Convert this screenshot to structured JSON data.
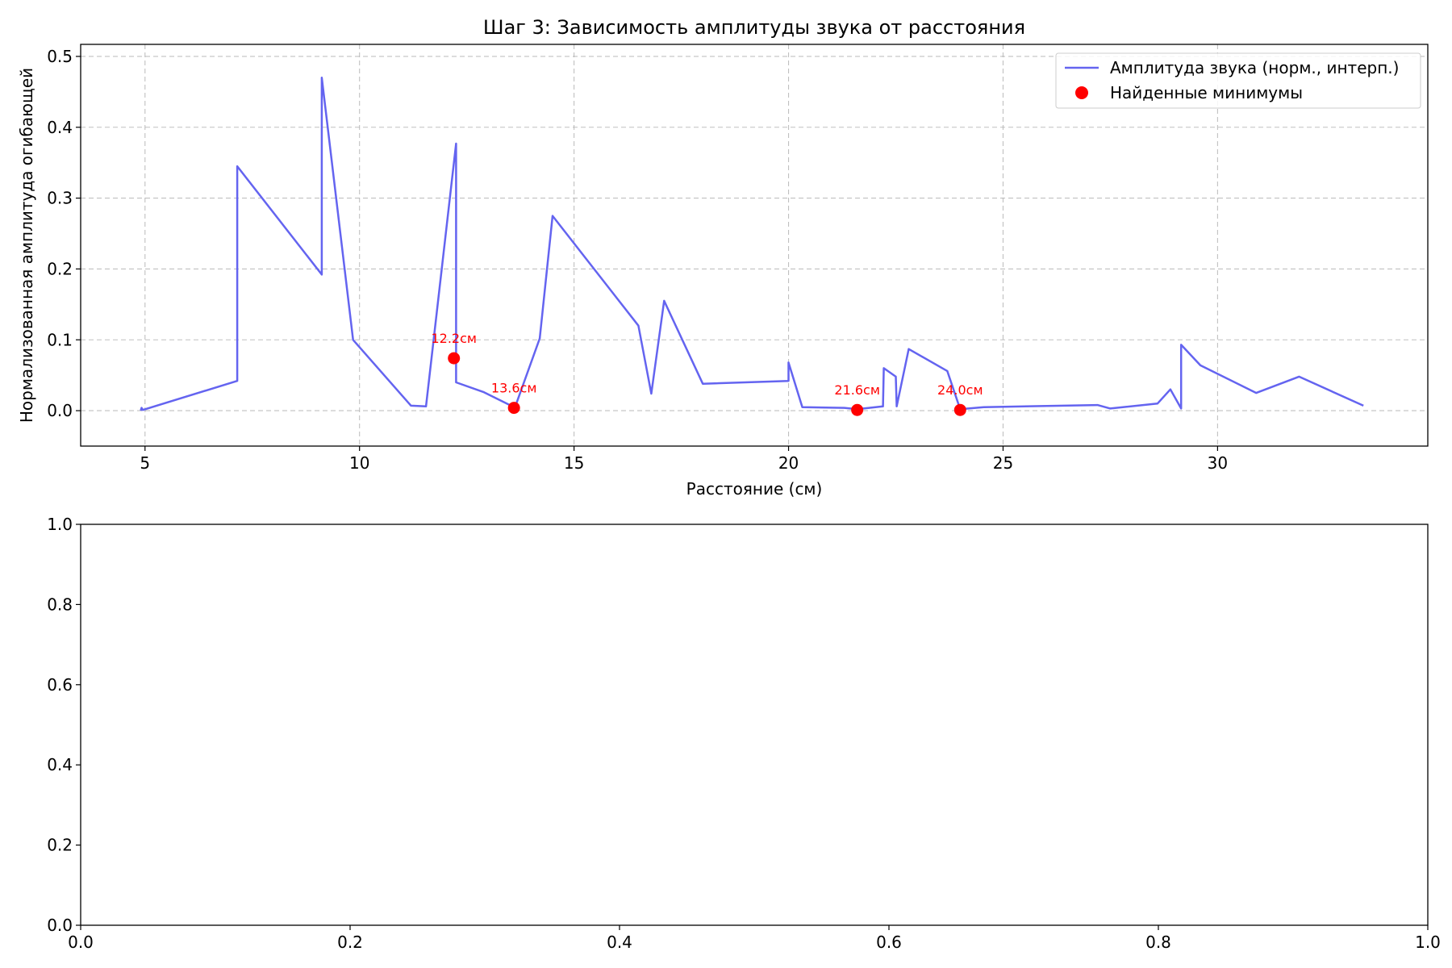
{
  "chart_data": [
    {
      "type": "line",
      "title": "Шаг 3: Зависимость амплитуды звука от расстояния",
      "xlabel": "Расстояние (см)",
      "ylabel": "Нормализованная амплитуда огибающей",
      "xlim": [
        3.5,
        34.9
      ],
      "ylim": [
        -0.05,
        0.517
      ],
      "xticks": [
        5,
        10,
        15,
        20,
        25,
        30
      ],
      "xtick_labels": [
        "5",
        "10",
        "15",
        "20",
        "25",
        "30"
      ],
      "yticks": [
        0.0,
        0.1,
        0.2,
        0.3,
        0.4,
        0.5
      ],
      "ytick_labels": [
        "0.0",
        "0.1",
        "0.2",
        "0.3",
        "0.4",
        "0.5"
      ],
      "grid": true,
      "legend_position": "top-right",
      "series": [
        {
          "name": "Амплитуда звука (норм., интерп.)",
          "kind": "line",
          "color": "#6464f0",
          "x": [
            4.9,
            4.92,
            4.95,
            7.15,
            7.15,
            9.12,
            9.12,
            9.85,
            11.2,
            11.55,
            12.25,
            12.25,
            12.9,
            13.6,
            13.62,
            14.2,
            14.5,
            16.5,
            16.8,
            17.1,
            18.0,
            20.0,
            20.0,
            20.32,
            21.3,
            21.6,
            22.2,
            22.22,
            22.5,
            22.52,
            22.8,
            23.7,
            24.0,
            24.55,
            27.2,
            27.5,
            28.6,
            28.9,
            29.15,
            29.15,
            29.6,
            30.9,
            31.9,
            33.4
          ],
          "y": [
            0.0,
            0.004,
            0.001,
            0.042,
            0.345,
            0.192,
            0.47,
            0.1,
            0.007,
            0.006,
            0.377,
            0.04,
            0.026,
            0.005,
            0.004,
            0.102,
            0.275,
            0.12,
            0.024,
            0.155,
            0.038,
            0.042,
            0.068,
            0.005,
            0.004,
            0.002,
            0.006,
            0.06,
            0.048,
            0.006,
            0.087,
            0.056,
            0.002,
            0.005,
            0.008,
            0.003,
            0.01,
            0.03,
            0.003,
            0.093,
            0.064,
            0.025,
            0.048,
            0.007
          ]
        },
        {
          "name": "Найденные минимумы",
          "kind": "scatter",
          "color": "#ff0000",
          "x": [
            12.2,
            13.6,
            21.6,
            24.0
          ],
          "y": [
            0.074,
            0.004,
            0.001,
            0.001
          ],
          "labels": [
            "12.2см",
            "13.6см",
            "21.6см",
            "24.0см"
          ]
        }
      ]
    },
    {
      "type": "line",
      "title": "",
      "xlabel": "",
      "ylabel": "",
      "xlim": [
        0.0,
        1.0
      ],
      "ylim": [
        0.0,
        1.0
      ],
      "xticks": [
        0.0,
        0.2,
        0.4,
        0.6,
        0.8,
        1.0
      ],
      "xtick_labels": [
        "0.0",
        "0.2",
        "0.4",
        "0.6",
        "0.8",
        "1.0"
      ],
      "yticks": [
        0.0,
        0.2,
        0.4,
        0.6,
        0.8,
        1.0
      ],
      "ytick_labels": [
        "0.0",
        "0.2",
        "0.4",
        "0.6",
        "0.8",
        "1.0"
      ],
      "grid": false,
      "series": []
    }
  ]
}
